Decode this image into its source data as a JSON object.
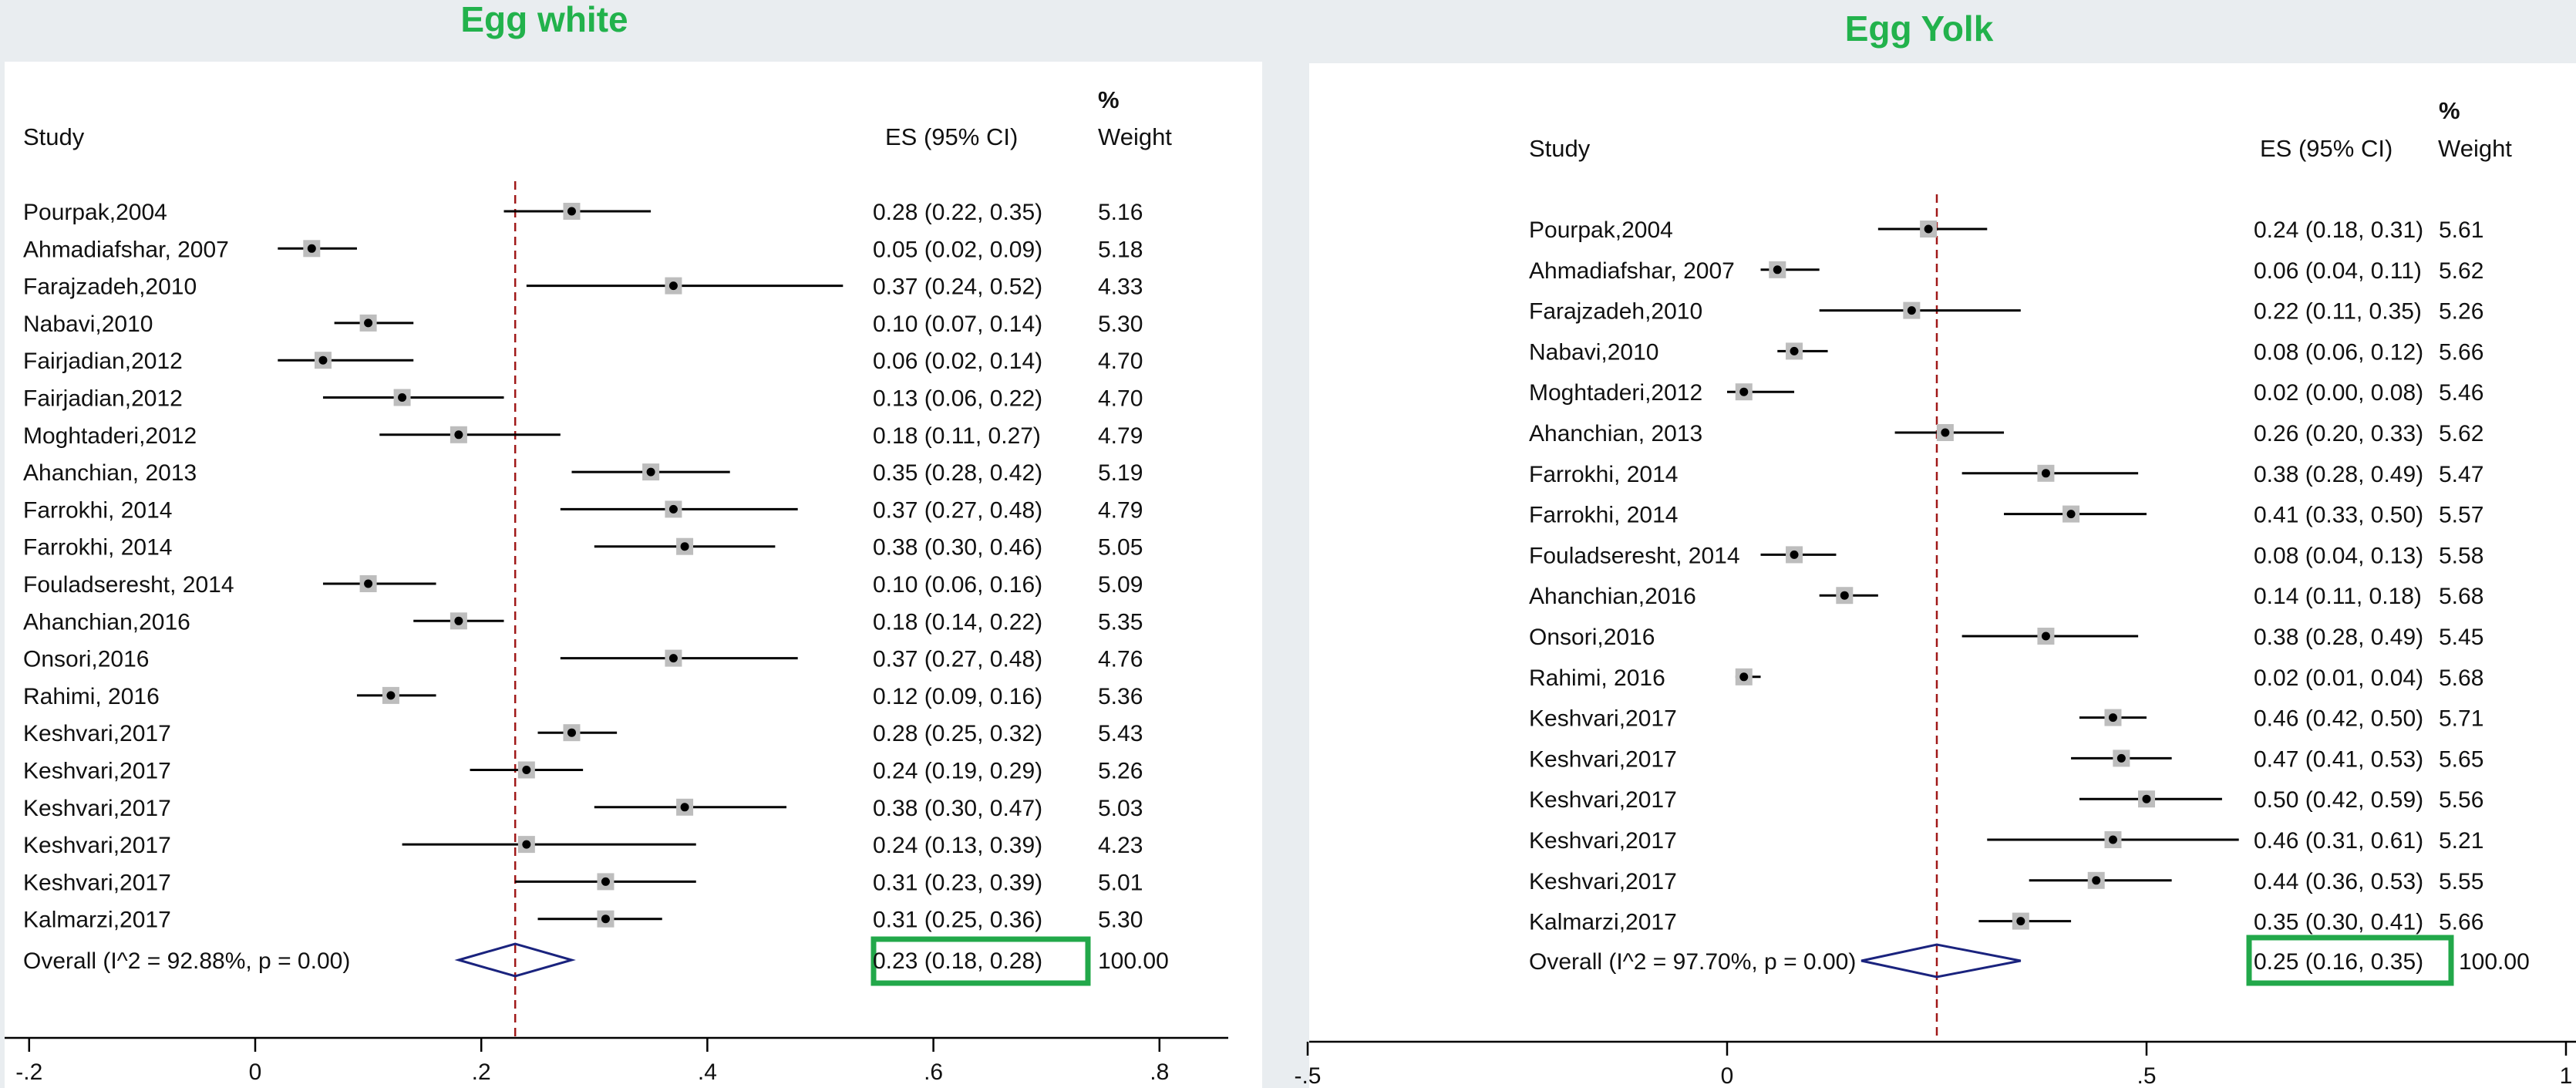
{
  "chart_data": [
    {
      "type": "forest",
      "title": "Egg white",
      "headers": {
        "study": "Study",
        "es": "ES (95% CI)",
        "weight_pct": "%",
        "weight": "Weight"
      },
      "xlim": [
        -0.2,
        0.8
      ],
      "xticks": [
        -0.2,
        0,
        0.2,
        0.4,
        0.6,
        0.8
      ],
      "xtick_labels": [
        "-.2",
        "0",
        ".2",
        ".4",
        ".6",
        ".8"
      ],
      "rows": [
        {
          "study": "Pourpak,2004",
          "es": 0.28,
          "lo": 0.22,
          "hi": 0.35,
          "es_text": "0.28 (0.22, 0.35)",
          "weight": "5.16"
        },
        {
          "study": "Ahmadiafshar, 2007",
          "es": 0.05,
          "lo": 0.02,
          "hi": 0.09,
          "es_text": "0.05 (0.02, 0.09)",
          "weight": "5.18"
        },
        {
          "study": "Farajzadeh,2010",
          "es": 0.37,
          "lo": 0.24,
          "hi": 0.52,
          "es_text": "0.37 (0.24, 0.52)",
          "weight": "4.33"
        },
        {
          "study": "Nabavi,2010",
          "es": 0.1,
          "lo": 0.07,
          "hi": 0.14,
          "es_text": "0.10 (0.07, 0.14)",
          "weight": "5.30"
        },
        {
          "study": "Fairjadian,2012",
          "es": 0.06,
          "lo": 0.02,
          "hi": 0.14,
          "es_text": "0.06 (0.02, 0.14)",
          "weight": "4.70"
        },
        {
          "study": "Fairjadian,2012",
          "es": 0.13,
          "lo": 0.06,
          "hi": 0.22,
          "es_text": "0.13 (0.06, 0.22)",
          "weight": "4.70"
        },
        {
          "study": "Moghtaderi,2012",
          "es": 0.18,
          "lo": 0.11,
          "hi": 0.27,
          "es_text": "0.18 (0.11, 0.27)",
          "weight": "4.79"
        },
        {
          "study": "Ahanchian, 2013",
          "es": 0.35,
          "lo": 0.28,
          "hi": 0.42,
          "es_text": "0.35 (0.28, 0.42)",
          "weight": "5.19"
        },
        {
          "study": "Farrokhi, 2014",
          "es": 0.37,
          "lo": 0.27,
          "hi": 0.48,
          "es_text": "0.37 (0.27, 0.48)",
          "weight": "4.79"
        },
        {
          "study": "Farrokhi, 2014",
          "es": 0.38,
          "lo": 0.3,
          "hi": 0.46,
          "es_text": "0.38 (0.30, 0.46)",
          "weight": "5.05"
        },
        {
          "study": "Fouladseresht, 2014",
          "es": 0.1,
          "lo": 0.06,
          "hi": 0.16,
          "es_text": "0.10 (0.06, 0.16)",
          "weight": "5.09"
        },
        {
          "study": "Ahanchian,2016",
          "es": 0.18,
          "lo": 0.14,
          "hi": 0.22,
          "es_text": "0.18 (0.14, 0.22)",
          "weight": "5.35"
        },
        {
          "study": "Onsori,2016",
          "es": 0.37,
          "lo": 0.27,
          "hi": 0.48,
          "es_text": "0.37 (0.27, 0.48)",
          "weight": "4.76"
        },
        {
          "study": "Rahimi, 2016",
          "es": 0.12,
          "lo": 0.09,
          "hi": 0.16,
          "es_text": "0.12 (0.09, 0.16)",
          "weight": "5.36"
        },
        {
          "study": "Keshvari,2017",
          "es": 0.28,
          "lo": 0.25,
          "hi": 0.32,
          "es_text": "0.28 (0.25, 0.32)",
          "weight": "5.43"
        },
        {
          "study": "Keshvari,2017",
          "es": 0.24,
          "lo": 0.19,
          "hi": 0.29,
          "es_text": "0.24 (0.19, 0.29)",
          "weight": "5.26"
        },
        {
          "study": "Keshvari,2017",
          "es": 0.38,
          "lo": 0.3,
          "hi": 0.47,
          "es_text": "0.38 (0.30, 0.47)",
          "weight": "5.03"
        },
        {
          "study": "Keshvari,2017",
          "es": 0.24,
          "lo": 0.13,
          "hi": 0.39,
          "es_text": "0.24 (0.13, 0.39)",
          "weight": "4.23"
        },
        {
          "study": "Keshvari,2017",
          "es": 0.31,
          "lo": 0.23,
          "hi": 0.39,
          "es_text": "0.31 (0.23, 0.39)",
          "weight": "5.01"
        },
        {
          "study": "Kalmarzi,2017",
          "es": 0.31,
          "lo": 0.25,
          "hi": 0.36,
          "es_text": "0.31 (0.25, 0.36)",
          "weight": "5.30"
        }
      ],
      "overall": {
        "label": "Overall  (I^2 = 92.88%, p = 0.00)",
        "es": 0.23,
        "lo": 0.18,
        "hi": 0.28,
        "es_text": "0.23 (0.18, 0.28)",
        "weight": "100.00"
      }
    },
    {
      "type": "forest",
      "title": "Egg Yolk",
      "headers": {
        "study": "Study",
        "es": "ES (95% CI)",
        "weight_pct": "%",
        "weight": "Weight"
      },
      "xlim": [
        -0.5,
        1
      ],
      "xticks": [
        -0.5,
        0,
        0.5,
        1
      ],
      "xtick_labels": [
        "-.5",
        "0",
        ".5",
        "1"
      ],
      "rows": [
        {
          "study": "Pourpak,2004",
          "es": 0.24,
          "lo": 0.18,
          "hi": 0.31,
          "es_text": "0.24 (0.18, 0.31)",
          "weight": "5.61"
        },
        {
          "study": "Ahmadiafshar, 2007",
          "es": 0.06,
          "lo": 0.04,
          "hi": 0.11,
          "es_text": "0.06 (0.04, 0.11)",
          "weight": "5.62"
        },
        {
          "study": "Farajzadeh,2010",
          "es": 0.22,
          "lo": 0.11,
          "hi": 0.35,
          "es_text": "0.22 (0.11, 0.35)",
          "weight": "5.26"
        },
        {
          "study": "Nabavi,2010",
          "es": 0.08,
          "lo": 0.06,
          "hi": 0.12,
          "es_text": "0.08 (0.06, 0.12)",
          "weight": "5.66"
        },
        {
          "study": "Moghtaderi,2012",
          "es": 0.02,
          "lo": 0.0,
          "hi": 0.08,
          "es_text": "0.02 (0.00, 0.08)",
          "weight": "5.46"
        },
        {
          "study": "Ahanchian, 2013",
          "es": 0.26,
          "lo": 0.2,
          "hi": 0.33,
          "es_text": "0.26 (0.20, 0.33)",
          "weight": "5.62"
        },
        {
          "study": "Farrokhi, 2014",
          "es": 0.38,
          "lo": 0.28,
          "hi": 0.49,
          "es_text": "0.38 (0.28, 0.49)",
          "weight": "5.47"
        },
        {
          "study": "Farrokhi, 2014",
          "es": 0.41,
          "lo": 0.33,
          "hi": 0.5,
          "es_text": "0.41 (0.33, 0.50)",
          "weight": "5.57"
        },
        {
          "study": "Fouladseresht, 2014",
          "es": 0.08,
          "lo": 0.04,
          "hi": 0.13,
          "es_text": "0.08 (0.04, 0.13)",
          "weight": "5.58"
        },
        {
          "study": "Ahanchian,2016",
          "es": 0.14,
          "lo": 0.11,
          "hi": 0.18,
          "es_text": "0.14 (0.11, 0.18)",
          "weight": "5.68"
        },
        {
          "study": "Onsori,2016",
          "es": 0.38,
          "lo": 0.28,
          "hi": 0.49,
          "es_text": "0.38 (0.28, 0.49)",
          "weight": "5.45"
        },
        {
          "study": "Rahimi, 2016",
          "es": 0.02,
          "lo": 0.01,
          "hi": 0.04,
          "es_text": "0.02 (0.01, 0.04)",
          "weight": "5.68"
        },
        {
          "study": "Keshvari,2017",
          "es": 0.46,
          "lo": 0.42,
          "hi": 0.5,
          "es_text": "0.46 (0.42, 0.50)",
          "weight": "5.71"
        },
        {
          "study": "Keshvari,2017",
          "es": 0.47,
          "lo": 0.41,
          "hi": 0.53,
          "es_text": "0.47 (0.41, 0.53)",
          "weight": "5.65"
        },
        {
          "study": "Keshvari,2017",
          "es": 0.5,
          "lo": 0.42,
          "hi": 0.59,
          "es_text": "0.50 (0.42, 0.59)",
          "weight": "5.56"
        },
        {
          "study": "Keshvari,2017",
          "es": 0.46,
          "lo": 0.31,
          "hi": 0.61,
          "es_text": "0.46 (0.31, 0.61)",
          "weight": "5.21"
        },
        {
          "study": "Keshvari,2017",
          "es": 0.44,
          "lo": 0.36,
          "hi": 0.53,
          "es_text": "0.44 (0.36, 0.53)",
          "weight": "5.55"
        },
        {
          "study": "Kalmarzi,2017",
          "es": 0.35,
          "lo": 0.3,
          "hi": 0.41,
          "es_text": "0.35 (0.30, 0.41)",
          "weight": "5.66"
        }
      ],
      "overall": {
        "label": "Overall  (I^2 = 97.70%, p = 0.00)",
        "es": 0.25,
        "lo": 0.16,
        "hi": 0.35,
        "es_text": "0.25 (0.16, 0.35)",
        "weight": "100.00"
      }
    }
  ],
  "colors": {
    "title": "#22b24c",
    "highlight_box": "#22a84a",
    "reference_line": "#a01818",
    "overall_diamond": "#1a237e",
    "ci_line": "#000000",
    "weight_square": "#bdbdbd"
  }
}
